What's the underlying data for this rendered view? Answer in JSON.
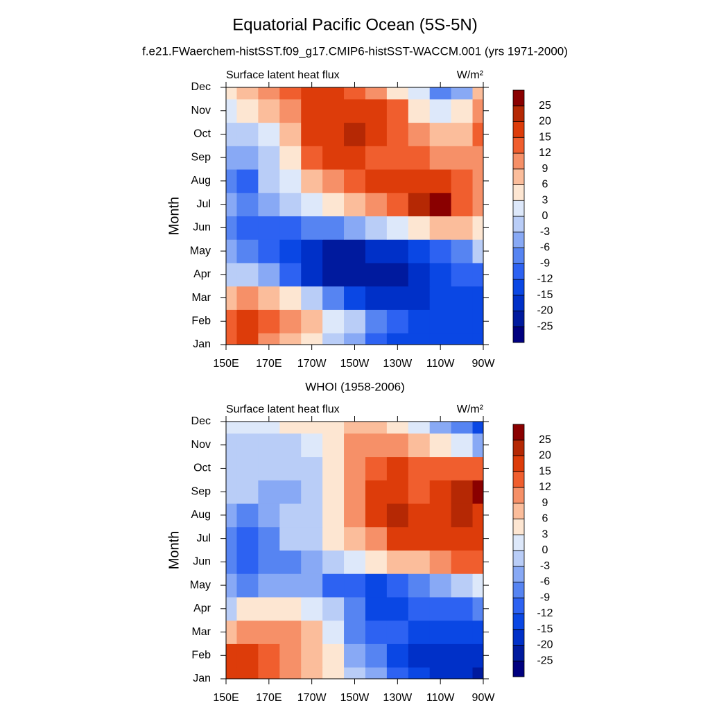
{
  "chart_data": [
    {
      "type": "contour",
      "title": "Equatorial Pacific Ocean (5S-5N)",
      "subtitle": "f.e21.FWaerchem-histSST.f09_g17.CMIP6-histSST-WACCM.001 (yrs 1971-2000)",
      "left_label": "Surface latent heat flux",
      "right_label": "W/m²",
      "ylabel": "Month",
      "categories": [
        "Jan",
        "Feb",
        "Mar",
        "Apr",
        "May",
        "Jun",
        "Jul",
        "Aug",
        "Sep",
        "Oct",
        "Nov",
        "Dec"
      ],
      "x": [
        150,
        160,
        170,
        180,
        190,
        200,
        210,
        220,
        230,
        240,
        250,
        260,
        270
      ],
      "xlim": [
        150,
        270
      ],
      "xticks": [
        {
          "value": 150,
          "label": "150E"
        },
        {
          "value": 170,
          "label": "170E"
        },
        {
          "value": 190,
          "label": "170W"
        },
        {
          "value": 210,
          "label": "150W"
        },
        {
          "value": 230,
          "label": "130W"
        },
        {
          "value": 250,
          "label": "110W"
        },
        {
          "value": 270,
          "label": "90W"
        }
      ],
      "values": [
        [
          12,
          15,
          9,
          6,
          3,
          -3,
          -6,
          -12,
          -15,
          -15,
          -15,
          -15,
          -15
        ],
        [
          12,
          15,
          12,
          9,
          6,
          0,
          -3,
          -9,
          -12,
          -15,
          -15,
          -15,
          -15
        ],
        [
          6,
          9,
          6,
          3,
          -3,
          -9,
          -15,
          -20,
          -20,
          -20,
          -15,
          -15,
          -15
        ],
        [
          -3,
          -3,
          -6,
          -12,
          -20,
          -25,
          -25,
          -25,
          -25,
          -20,
          -15,
          -12,
          -12
        ],
        [
          -6,
          -9,
          -12,
          -15,
          -20,
          -25,
          -25,
          -20,
          -20,
          -15,
          -12,
          -9,
          -3
        ],
        [
          -9,
          -12,
          -12,
          -12,
          -9,
          -9,
          -6,
          -3,
          0,
          3,
          6,
          6,
          3
        ],
        [
          -6,
          -9,
          -6,
          -3,
          0,
          3,
          6,
          9,
          12,
          20,
          25,
          12,
          9
        ],
        [
          -9,
          -12,
          -3,
          0,
          6,
          9,
          12,
          15,
          15,
          15,
          15,
          12,
          9
        ],
        [
          -6,
          -6,
          -3,
          3,
          12,
          15,
          15,
          12,
          12,
          12,
          9,
          9,
          9
        ],
        [
          -3,
          -3,
          0,
          6,
          15,
          15,
          20,
          15,
          12,
          9,
          6,
          6,
          12
        ],
        [
          0,
          3,
          6,
          9,
          15,
          15,
          15,
          15,
          12,
          3,
          0,
          3,
          9
        ],
        [
          3,
          6,
          9,
          12,
          15,
          15,
          12,
          9,
          3,
          0,
          -9,
          -6,
          6
        ]
      ],
      "levels": [
        -25,
        -20,
        -15,
        -12,
        -9,
        -6,
        -3,
        0,
        3,
        6,
        9,
        12,
        15,
        20,
        25
      ],
      "colors": [
        "#00007f",
        "#001a9e",
        "#0030c8",
        "#0a47e4",
        "#2d62f2",
        "#5684f2",
        "#88a9f5",
        "#b9cdf7",
        "#dde8fa",
        "#fde6d2",
        "#fbbd9b",
        "#f69068",
        "#f05e2e",
        "#dd3c0a",
        "#b52804",
        "#8a0000"
      ]
    },
    {
      "type": "contour",
      "subtitle": "WHOI (1958-2006)",
      "left_label": "Surface latent heat flux",
      "right_label": "W/m²",
      "ylabel": "Month",
      "categories": [
        "Jan",
        "Feb",
        "Mar",
        "Apr",
        "May",
        "Jun",
        "Jul",
        "Aug",
        "Sep",
        "Oct",
        "Nov",
        "Dec"
      ],
      "x": [
        150,
        160,
        170,
        180,
        190,
        200,
        210,
        220,
        230,
        240,
        250,
        260,
        270
      ],
      "xlim": [
        150,
        270
      ],
      "xticks": [
        {
          "value": 150,
          "label": "150E"
        },
        {
          "value": 170,
          "label": "170E"
        },
        {
          "value": 190,
          "label": "170W"
        },
        {
          "value": 210,
          "label": "150W"
        },
        {
          "value": 230,
          "label": "130W"
        },
        {
          "value": 250,
          "label": "110W"
        },
        {
          "value": 270,
          "label": "90W"
        }
      ],
      "values": [
        [
          15,
          15,
          12,
          9,
          6,
          3,
          -3,
          -6,
          -12,
          -15,
          -20,
          -20,
          -25
        ],
        [
          15,
          15,
          12,
          9,
          6,
          3,
          -6,
          -9,
          -15,
          -20,
          -20,
          -20,
          -20
        ],
        [
          6,
          9,
          9,
          9,
          6,
          0,
          -9,
          -12,
          -12,
          -15,
          -15,
          -15,
          -15
        ],
        [
          -3,
          3,
          3,
          3,
          0,
          -3,
          -9,
          -15,
          -15,
          -12,
          -12,
          -12,
          -9
        ],
        [
          -6,
          -9,
          -6,
          -6,
          -6,
          -12,
          -12,
          -15,
          -12,
          -9,
          -6,
          -3,
          0
        ],
        [
          -9,
          -12,
          -9,
          -9,
          -6,
          -3,
          0,
          3,
          6,
          6,
          9,
          12,
          12
        ],
        [
          -9,
          -12,
          -9,
          -3,
          -3,
          3,
          6,
          9,
          15,
          15,
          15,
          15,
          15
        ],
        [
          -6,
          -9,
          -6,
          -3,
          -3,
          3,
          9,
          15,
          20,
          15,
          15,
          20,
          15
        ],
        [
          -3,
          -3,
          -6,
          -6,
          -3,
          3,
          9,
          15,
          15,
          12,
          15,
          20,
          25
        ],
        [
          -3,
          -3,
          -3,
          -3,
          -3,
          3,
          9,
          12,
          15,
          12,
          12,
          12,
          12
        ],
        [
          -3,
          -3,
          -3,
          -3,
          0,
          3,
          9,
          9,
          9,
          6,
          3,
          0,
          -6
        ],
        [
          0,
          0,
          0,
          3,
          3,
          3,
          6,
          6,
          3,
          0,
          -6,
          -9,
          -15
        ]
      ],
      "levels": [
        -25,
        -20,
        -15,
        -12,
        -9,
        -6,
        -3,
        0,
        3,
        6,
        9,
        12,
        15,
        20,
        25
      ],
      "colors": [
        "#00007f",
        "#001a9e",
        "#0030c8",
        "#0a47e4",
        "#2d62f2",
        "#5684f2",
        "#88a9f5",
        "#b9cdf7",
        "#dde8fa",
        "#fde6d2",
        "#fbbd9b",
        "#f69068",
        "#f05e2e",
        "#dd3c0a",
        "#b52804",
        "#8a0000"
      ]
    }
  ]
}
